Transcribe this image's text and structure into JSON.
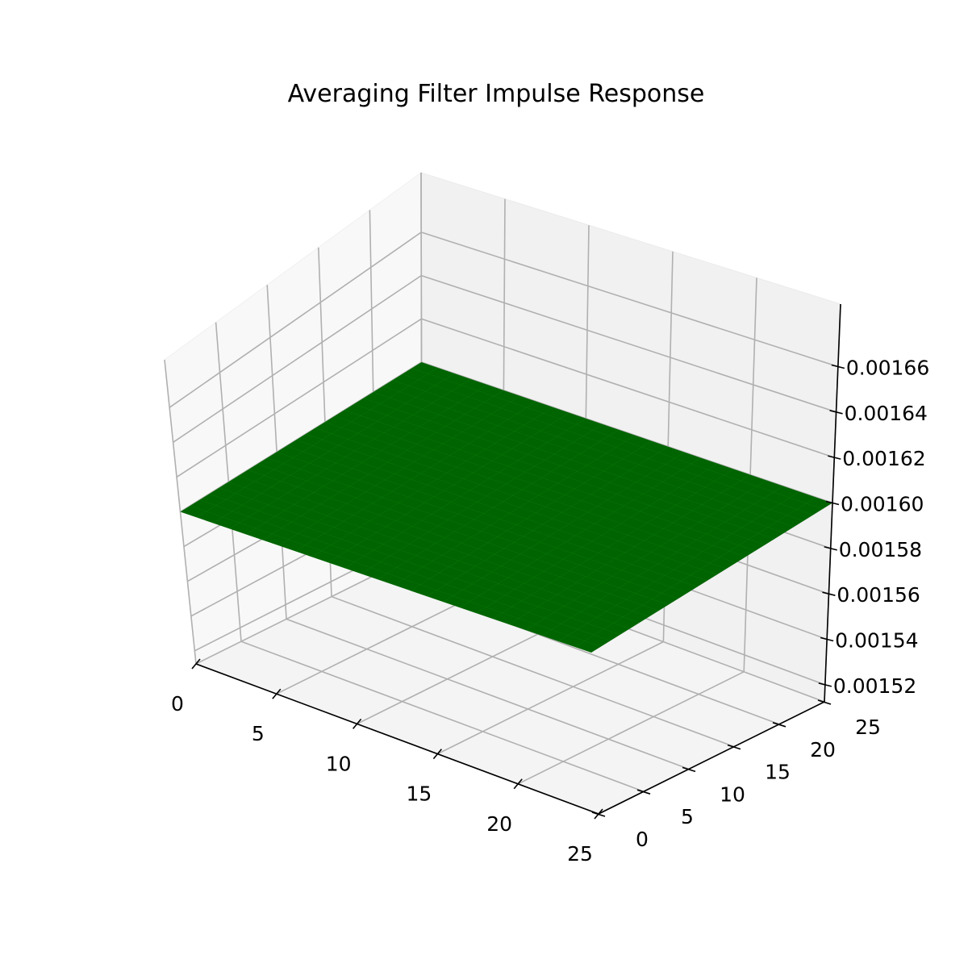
{
  "chart_data": {
    "type": "surface",
    "title": "Averaging Filter Impulse Response",
    "xlabel": "",
    "ylabel": "",
    "zlabel": "",
    "x_range": [
      0,
      25
    ],
    "y_range": [
      0,
      25
    ],
    "zlim": [
      0.0015125,
      0.0016875
    ],
    "grid": true,
    "surface_color": "#006400",
    "grid_size": 25,
    "z_value": 0.0016,
    "x_ticks": [
      0,
      5,
      10,
      15,
      20,
      25
    ],
    "y_ticks": [
      0,
      5,
      10,
      15,
      20,
      25
    ],
    "z_ticks": [
      0.00152,
      0.00154,
      0.00156,
      0.00158,
      0.0016,
      0.00162,
      0.00164,
      0.00166
    ],
    "z_tick_labels": [
      "0.00152",
      "0.00154",
      "0.00156",
      "0.00158",
      "0.00160",
      "0.00162",
      "0.00164",
      "0.00166"
    ]
  }
}
